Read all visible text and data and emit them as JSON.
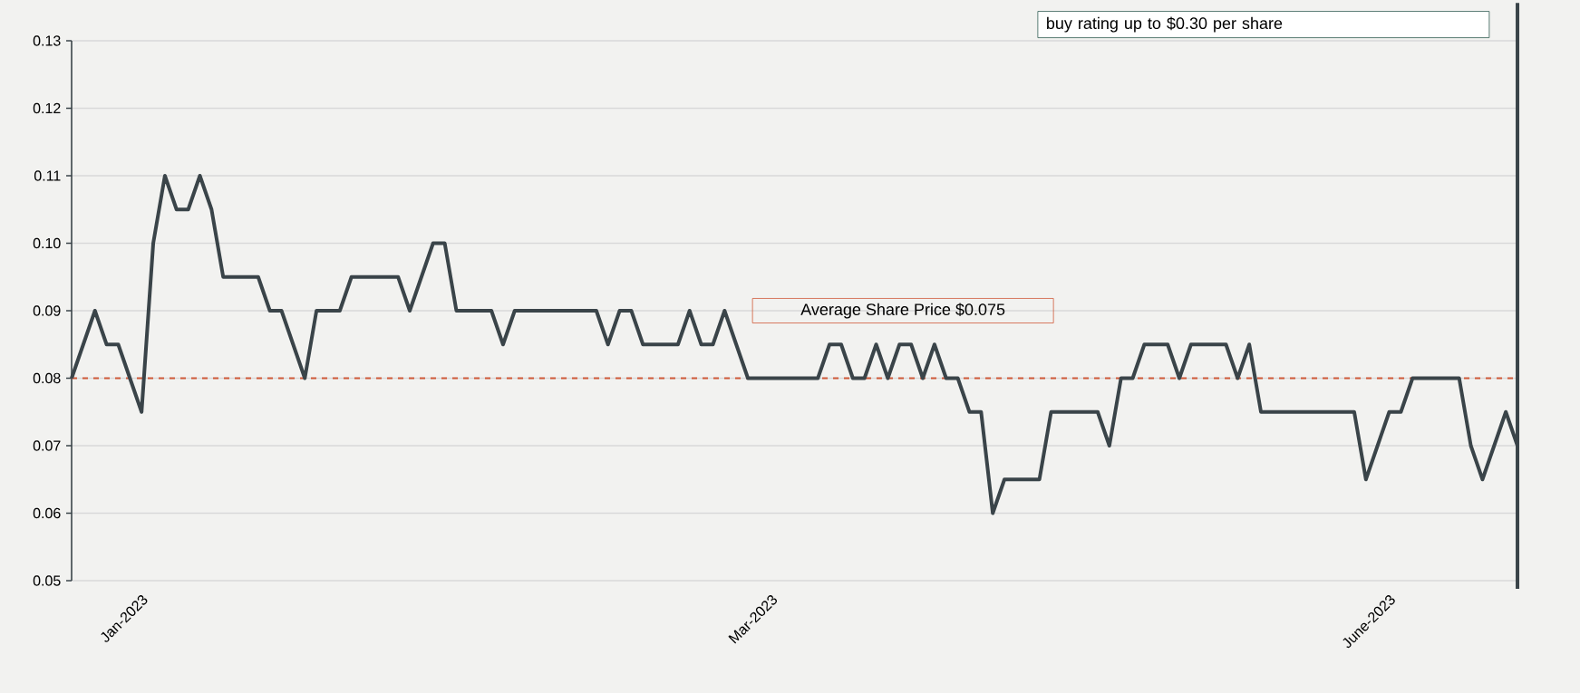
{
  "chart_data": {
    "type": "line",
    "categories": [
      null,
      null,
      null,
      null,
      null,
      null,
      "Jan-2023",
      null,
      null,
      null,
      null,
      null,
      null,
      null,
      null,
      null,
      null,
      null,
      null,
      null,
      null,
      null,
      null,
      null,
      null,
      null,
      null,
      null,
      null,
      null,
      null,
      null,
      null,
      null,
      null,
      null,
      null,
      null,
      null,
      null,
      null,
      null,
      null,
      null,
      null,
      null,
      null,
      null,
      null,
      null,
      null,
      null,
      null,
      null,
      null,
      null,
      null,
      null,
      null,
      null,
      "Mar-2023",
      null,
      null,
      null,
      null,
      null,
      null,
      null,
      null,
      null,
      null,
      null,
      null,
      null,
      null,
      null,
      null,
      null,
      null,
      null,
      null,
      null,
      null,
      null,
      null,
      null,
      null,
      null,
      null,
      null,
      null,
      null,
      null,
      null,
      null,
      null,
      null,
      null,
      null,
      null,
      null,
      null,
      null,
      null,
      null,
      null,
      null,
      null,
      null,
      null,
      null,
      null,
      null,
      "June-2023",
      null,
      null,
      null,
      null,
      null,
      null,
      null,
      null,
      null,
      null,
      null
    ],
    "values": [
      0.08,
      0.085,
      0.09,
      0.085,
      0.085,
      0.08,
      0.075,
      0.1,
      0.11,
      0.105,
      0.105,
      0.11,
      0.105,
      0.095,
      0.095,
      0.095,
      0.095,
      0.09,
      0.09,
      0.085,
      0.08,
      0.09,
      0.09,
      0.09,
      0.095,
      0.095,
      0.095,
      0.095,
      0.095,
      0.09,
      0.095,
      0.1,
      0.1,
      0.09,
      0.09,
      0.09,
      0.09,
      0.085,
      0.09,
      0.09,
      0.09,
      0.09,
      0.09,
      0.09,
      0.09,
      0.09,
      0.085,
      0.09,
      0.09,
      0.085,
      0.085,
      0.085,
      0.085,
      0.09,
      0.085,
      0.085,
      0.09,
      0.085,
      0.08,
      0.08,
      0.08,
      0.08,
      0.08,
      0.08,
      0.08,
      0.085,
      0.085,
      0.08,
      0.08,
      0.085,
      0.08,
      0.085,
      0.085,
      0.08,
      0.085,
      0.08,
      0.08,
      0.075,
      0.075,
      0.06,
      0.065,
      0.065,
      0.065,
      0.065,
      0.075,
      0.075,
      0.075,
      0.075,
      0.075,
      0.07,
      0.08,
      0.08,
      0.085,
      0.085,
      0.085,
      0.08,
      0.085,
      0.085,
      0.085,
      0.085,
      0.08,
      0.085,
      0.075,
      0.075,
      0.075,
      0.075,
      0.075,
      0.075,
      0.075,
      0.075,
      0.075,
      0.065,
      0.07,
      0.075,
      0.075,
      0.08,
      0.08,
      0.08,
      0.08,
      0.08,
      0.07,
      0.065,
      0.07,
      0.075,
      0.07
    ],
    "color": "#3a4449",
    "line_style": "solid",
    "ylim": [
      0.05,
      0.13
    ],
    "yticks": [
      0.05,
      0.06,
      0.07,
      0.08,
      0.09,
      {
        "value": 0.1,
        "label": "0.10"
      },
      0.11,
      0.12,
      0.13
    ],
    "grid": "y",
    "ref_lines": [
      {
        "axis": "y",
        "value": 0.08,
        "color": "#d05a3a",
        "line_style": "dashed"
      }
    ],
    "annotations": [
      "buy rating up to $0.30 per share",
      "Average Share Price $0.075"
    ]
  }
}
